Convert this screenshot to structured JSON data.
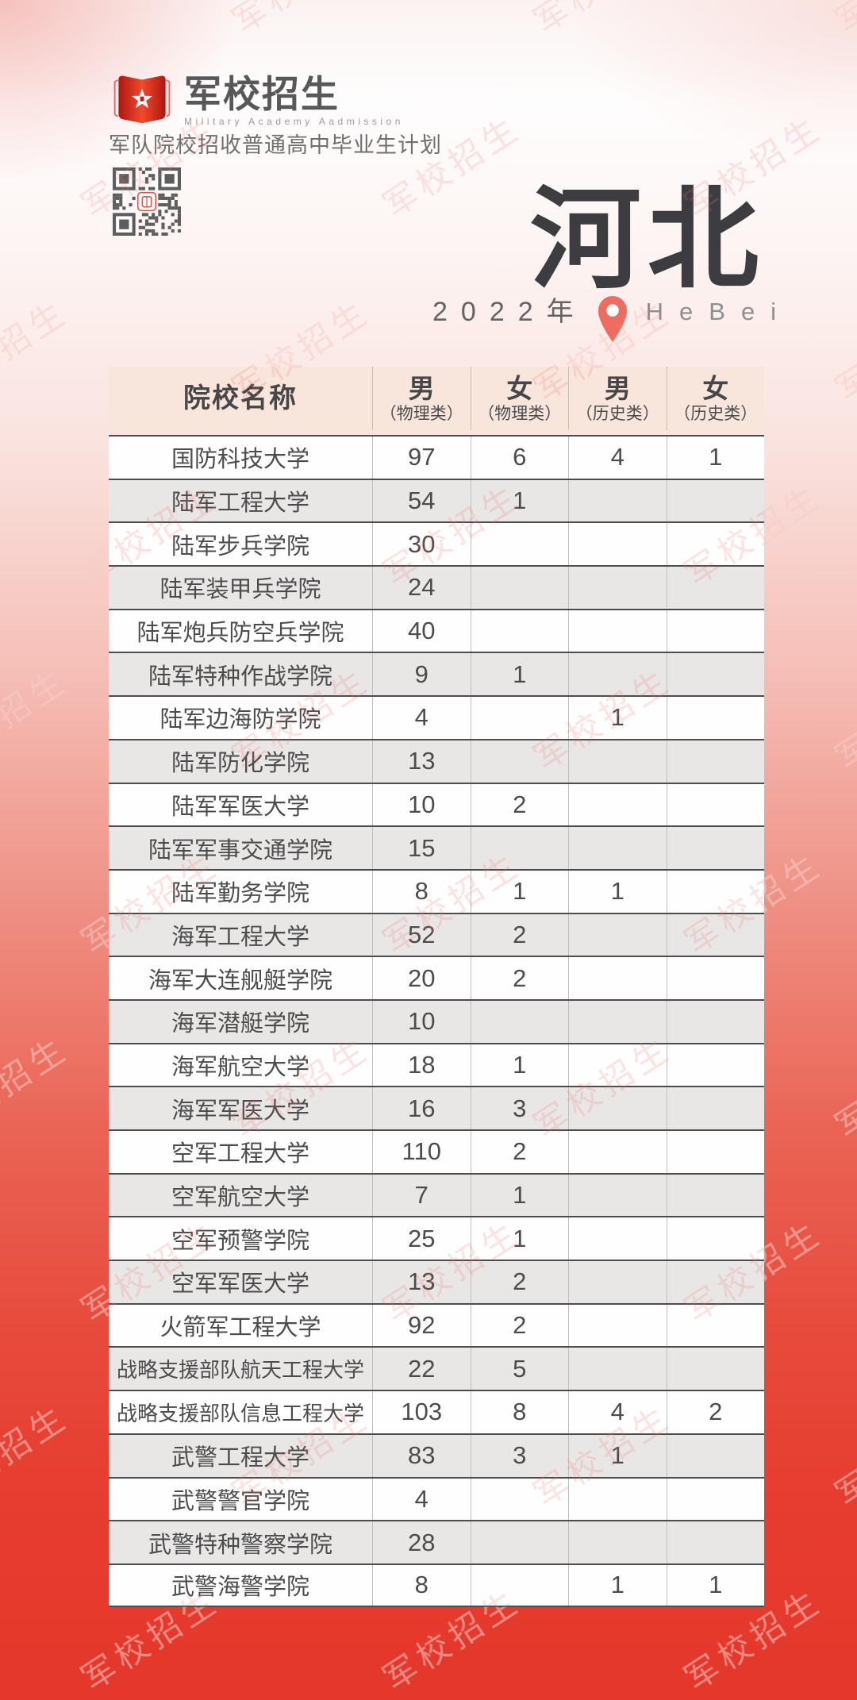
{
  "page": {
    "watermark": "军校招生",
    "colors": {
      "accent_red": "#e5372b",
      "logo_red": "#d6281c",
      "pin_red": "#ef6d60",
      "table_header_bg": "#f8e5dc",
      "row_alt_bg": "#e9e6e6",
      "row_line": "#4e4c4c",
      "text_dark": "#4c4c4c",
      "title_dark": "#3d3c40"
    }
  },
  "header": {
    "logo": {
      "title": "军校招生",
      "subtitle_en": "Military Academy Aadmission",
      "book_icon": "open-book-with-star-icon",
      "qr_icon": "qr-code"
    },
    "tagline": "军队院校招收普通高中毕业生计划"
  },
  "hero": {
    "province": "河北",
    "year": "2022年",
    "pin_icon": "location-pin-icon",
    "province_en": "HeBei"
  },
  "table": {
    "columns": [
      {
        "label": "院校名称",
        "sub": ""
      },
      {
        "label": "男",
        "sub": "（物理类）"
      },
      {
        "label": "女",
        "sub": "（物理类）"
      },
      {
        "label": "男",
        "sub": "（历史类）"
      },
      {
        "label": "女",
        "sub": "（历史类）"
      }
    ],
    "rows": [
      {
        "name": "国防科技大学",
        "values": [
          "97",
          "6",
          "4",
          "1"
        ]
      },
      {
        "name": "陆军工程大学",
        "values": [
          "54",
          "1",
          "",
          ""
        ]
      },
      {
        "name": "陆军步兵学院",
        "values": [
          "30",
          "",
          "",
          ""
        ]
      },
      {
        "name": "陆军装甲兵学院",
        "values": [
          "24",
          "",
          "",
          ""
        ]
      },
      {
        "name": "陆军炮兵防空兵学院",
        "values": [
          "40",
          "",
          "",
          ""
        ]
      },
      {
        "name": "陆军特种作战学院",
        "values": [
          "9",
          "1",
          "",
          ""
        ]
      },
      {
        "name": "陆军边海防学院",
        "values": [
          "4",
          "",
          "1",
          ""
        ]
      },
      {
        "name": "陆军防化学院",
        "values": [
          "13",
          "",
          "",
          ""
        ]
      },
      {
        "name": "陆军军医大学",
        "values": [
          "10",
          "2",
          "",
          ""
        ]
      },
      {
        "name": "陆军军事交通学院",
        "values": [
          "15",
          "",
          "",
          ""
        ]
      },
      {
        "name": "陆军勤务学院",
        "values": [
          "8",
          "1",
          "1",
          ""
        ]
      },
      {
        "name": "海军工程大学",
        "values": [
          "52",
          "2",
          "",
          ""
        ]
      },
      {
        "name": "海军大连舰艇学院",
        "values": [
          "20",
          "2",
          "",
          ""
        ]
      },
      {
        "name": "海军潜艇学院",
        "values": [
          "10",
          "",
          "",
          ""
        ]
      },
      {
        "name": "海军航空大学",
        "values": [
          "18",
          "1",
          "",
          ""
        ]
      },
      {
        "name": "海军军医大学",
        "values": [
          "16",
          "3",
          "",
          ""
        ]
      },
      {
        "name": "空军工程大学",
        "values": [
          "110",
          "2",
          "",
          ""
        ]
      },
      {
        "name": "空军航空大学",
        "values": [
          "7",
          "1",
          "",
          ""
        ]
      },
      {
        "name": "空军预警学院",
        "values": [
          "25",
          "1",
          "",
          ""
        ]
      },
      {
        "name": "空军军医大学",
        "values": [
          "13",
          "2",
          "",
          ""
        ]
      },
      {
        "name": "火箭军工程大学",
        "values": [
          "92",
          "2",
          "",
          ""
        ]
      },
      {
        "name": "战略支援部队航天工程大学",
        "values": [
          "22",
          "5",
          "",
          ""
        ]
      },
      {
        "name": "战略支援部队信息工程大学",
        "values": [
          "103",
          "8",
          "4",
          "2"
        ]
      },
      {
        "name": "武警工程大学",
        "values": [
          "83",
          "3",
          "1",
          ""
        ]
      },
      {
        "name": "武警警官学院",
        "values": [
          "4",
          "",
          "",
          ""
        ]
      },
      {
        "name": "武警特种警察学院",
        "values": [
          "28",
          "",
          "",
          ""
        ]
      },
      {
        "name": "武警海警学院",
        "values": [
          "8",
          "",
          "1",
          "1"
        ]
      }
    ]
  }
}
